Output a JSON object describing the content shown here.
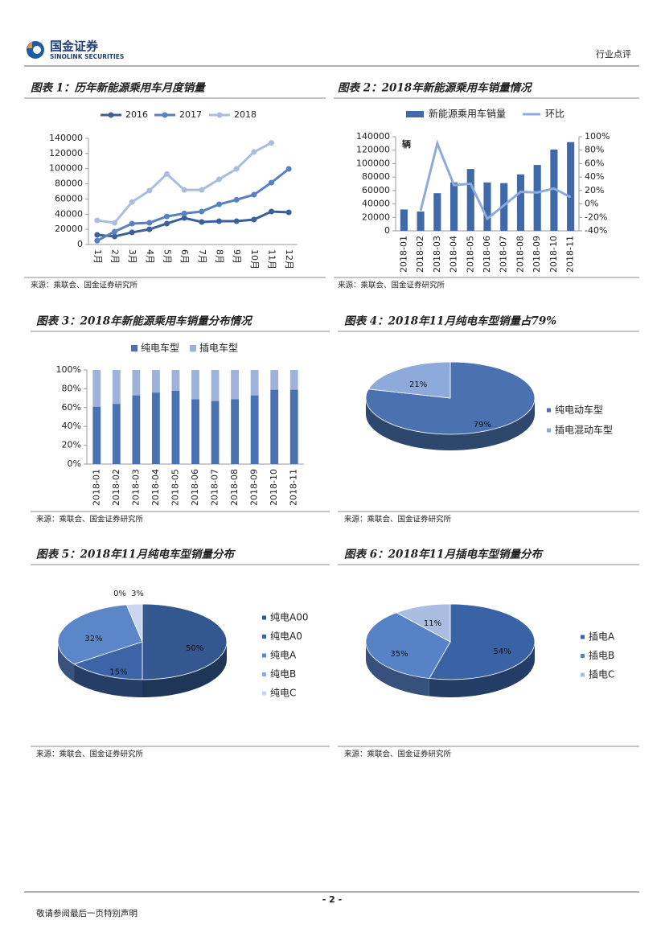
{
  "header": {
    "company_cn": "国金证券",
    "company_en": "SINOLINK SECURITIES",
    "category": "行业点评"
  },
  "footer": {
    "page": "- 2 -",
    "disclaimer": "敬请参阅最后一页特别声明"
  },
  "chart_data": [
    {
      "type": "line",
      "title": "图表 1：历年新能源乘用车月度销量",
      "source": "来源：乘联会、国金证券研究所",
      "categories": [
        "1月",
        "2月",
        "3月",
        "4月",
        "5月",
        "6月",
        "7月",
        "8月",
        "9月",
        "10月",
        "11月",
        "12月"
      ],
      "series": [
        {
          "name": "2016",
          "color": "#3b5f98",
          "values": [
            12700,
            10600,
            16000,
            20000,
            27600,
            35000,
            29700,
            30700,
            30700,
            32900,
            43500,
            42400
          ]
        },
        {
          "name": "2017",
          "color": "#5681c2",
          "values": [
            5000,
            17000,
            27600,
            28600,
            37000,
            41000,
            43500,
            53000,
            59000,
            65700,
            81600,
            99700
          ]
        },
        {
          "name": "2018",
          "color": "#a9bde0",
          "values": [
            31800,
            28600,
            56000,
            71000,
            93000,
            72000,
            72000,
            86000,
            99700,
            122000,
            134000,
            null
          ]
        }
      ],
      "ylim": [
        0,
        140000
      ],
      "yticks": [
        0,
        20000,
        40000,
        60000,
        80000,
        100000,
        120000,
        140000
      ],
      "legend": "top"
    },
    {
      "type": "combo",
      "title": "图表 2：2018年新能源乘用车销量情况",
      "source": "来源：乘联会、国金证券研究所",
      "y_label": "辆",
      "categories": [
        "2018-01",
        "2018-02",
        "2018-03",
        "2018-04",
        "2018-05",
        "2018-06",
        "2018-07",
        "2018-08",
        "2018-09",
        "2018-10",
        "2018-11"
      ],
      "series": [
        {
          "name": "新能源乘用车销量",
          "color": "#3f69a8",
          "mark": "bar",
          "values": [
            31800,
            28700,
            56000,
            72000,
            92000,
            72000,
            71000,
            84000,
            98000,
            121000,
            132000
          ]
        },
        {
          "name": "环比",
          "color": "#8eaadb",
          "mark": "line",
          "axis": "y2",
          "values": [
            null,
            -10,
            90,
            28,
            30,
            -22,
            -2,
            18,
            17,
            23,
            10
          ]
        }
      ],
      "ylim": [
        0,
        140000
      ],
      "yticks": [
        0,
        20000,
        40000,
        60000,
        80000,
        100000,
        120000,
        140000
      ],
      "y2lim": [
        -40,
        100
      ],
      "y2ticks": [
        {
          "value": -40,
          "label": "-40%"
        },
        {
          "value": -20,
          "label": "-20%"
        },
        {
          "value": 0,
          "label": "0%"
        },
        {
          "value": 20,
          "label": "20%"
        },
        {
          "value": 40,
          "label": "40%"
        },
        {
          "value": 60,
          "label": "60%"
        },
        {
          "value": 80,
          "label": "80%"
        },
        {
          "value": 100,
          "label": "100%"
        }
      ],
      "legend": "top"
    },
    {
      "type": "bar",
      "stacked": true,
      "title": "图表 3：2018年新能源乘用车销量分布情况",
      "source": "来源：乘联会、国金证券研究所",
      "categories": [
        "2018-01",
        "2018-02",
        "2018-03",
        "2018-04",
        "2018-05",
        "2018-06",
        "2018-07",
        "2018-08",
        "2018-09",
        "2018-10",
        "2018-11"
      ],
      "series": [
        {
          "name": "纯电车型",
          "color": "#4a72b0",
          "values": [
            61,
            64,
            73,
            76,
            78,
            69,
            67,
            69,
            73,
            79,
            79
          ]
        },
        {
          "name": "插电车型",
          "color": "#9fb3da",
          "values": [
            39,
            36,
            27,
            24,
            22,
            31,
            33,
            31,
            27,
            21,
            21
          ]
        }
      ],
      "ylim": [
        0,
        100
      ],
      "yticks": [
        {
          "value": 0,
          "label": "0%"
        },
        {
          "value": 20,
          "label": "20%"
        },
        {
          "value": 40,
          "label": "40%"
        },
        {
          "value": 60,
          "label": "60%"
        },
        {
          "value": 80,
          "label": "80%"
        },
        {
          "value": 100,
          "label": "100%"
        }
      ],
      "legend": "top"
    },
    {
      "type": "pie",
      "three_d": true,
      "title": "图表 4：2018年11月纯电车型销量占79%",
      "source": "来源：乘联会、国金证券研究所",
      "categories": [
        "纯电动车型",
        "插电混动车型"
      ],
      "values": [
        79,
        21
      ],
      "value_labels": [
        "79%",
        "21%"
      ],
      "colors": [
        "#4a72b0",
        "#8eaadb"
      ],
      "legend": "right"
    },
    {
      "type": "pie",
      "three_d": true,
      "title": "图表 5：2018年11月纯电车型销量分布",
      "source": "来源：乘联会、国金证券研究所",
      "categories": [
        "纯电A00",
        "纯电A0",
        "纯电A",
        "纯电B",
        "纯电C"
      ],
      "values": [
        50,
        15,
        32,
        0,
        3
      ],
      "value_labels": [
        "50%",
        "15%",
        "32%",
        "0%",
        "3%"
      ],
      "colors": [
        "#34578f",
        "#3d64a6",
        "#5b86c8",
        "#8eaadb",
        "#c9d6ee"
      ],
      "legend": "right"
    },
    {
      "type": "pie",
      "three_d": true,
      "title": "图表 6：2018年11月插电车型销量分布",
      "source": "来源：乘联会、国金证券研究所",
      "categories": [
        "插电A",
        "插电B",
        "插电C"
      ],
      "values": [
        54,
        35,
        11
      ],
      "value_labels": [
        "54%",
        "35%",
        "11%"
      ],
      "colors": [
        "#3a63a5",
        "#5783c6",
        "#a9bde0"
      ],
      "legend": "right"
    }
  ]
}
